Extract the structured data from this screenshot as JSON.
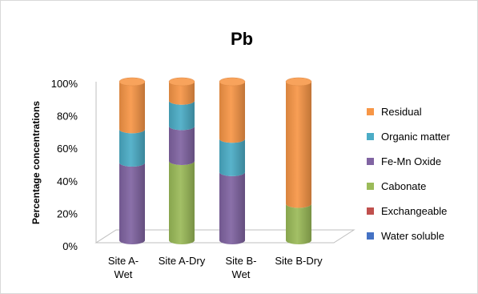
{
  "chart_data": {
    "type": "bar",
    "stacked": true,
    "three_d": true,
    "title": "Pb",
    "ylabel": "Percentage concentrations",
    "xlabel": "",
    "ylim": [
      0,
      100
    ],
    "y_ticks": [
      "0%",
      "20%",
      "40%",
      "60%",
      "80%",
      "100%"
    ],
    "categories": [
      [
        "Site A-",
        "Wet"
      ],
      [
        "Site A-Dry"
      ],
      [
        "Site B-",
        "Wet"
      ],
      [
        "Site B-Dry"
      ]
    ],
    "legend_position": "right",
    "series": [
      {
        "name": "Water soluble",
        "color": "#4472c4",
        "values": [
          0,
          0,
          0,
          0
        ]
      },
      {
        "name": "Exchangeable",
        "color": "#c0504d",
        "values": [
          0,
          0,
          0,
          0
        ]
      },
      {
        "name": "Cabonate",
        "color": "#9bbb59",
        "values": [
          0,
          50,
          0,
          23
        ]
      },
      {
        "name": "Fe-Mn Oxide",
        "color": "#8064a2",
        "values": [
          49,
          22,
          43,
          0
        ]
      },
      {
        "name": "Organic matter",
        "color": "#4bacc6",
        "values": [
          21,
          16,
          21,
          0
        ]
      },
      {
        "name": "Residual",
        "color": "#f79646",
        "values": [
          30,
          12,
          36,
          77
        ]
      }
    ]
  }
}
